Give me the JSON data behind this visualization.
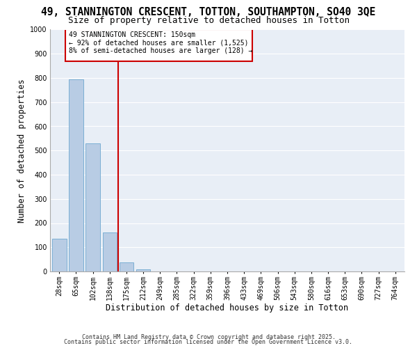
{
  "title1": "49, STANNINGTON CRESCENT, TOTTON, SOUTHAMPTON, SO40 3QE",
  "title2": "Size of property relative to detached houses in Totton",
  "xlabel": "Distribution of detached houses by size in Totton",
  "ylabel": "Number of detached properties",
  "bar_labels": [
    "28sqm",
    "65sqm",
    "102sqm",
    "138sqm",
    "175sqm",
    "212sqm",
    "249sqm",
    "285sqm",
    "322sqm",
    "359sqm",
    "396sqm",
    "433sqm",
    "469sqm",
    "506sqm",
    "543sqm",
    "580sqm",
    "616sqm",
    "653sqm",
    "690sqm",
    "727sqm",
    "764sqm"
  ],
  "bar_values": [
    135,
    795,
    530,
    162,
    38,
    8,
    0,
    0,
    0,
    0,
    0,
    0,
    0,
    0,
    0,
    0,
    0,
    0,
    0,
    0,
    0
  ],
  "bar_color": "#b8cce4",
  "bar_edge_color": "#7bafd4",
  "bg_color": "#e8eef6",
  "grid_color": "#ffffff",
  "vline_color": "#cc0000",
  "annotation_text": "49 STANNINGTON CRESCENT: 150sqm\n← 92% of detached houses are smaller (1,525)\n8% of semi-detached houses are larger (128) →",
  "annotation_box_color": "#cc0000",
  "ylim": [
    0,
    1000
  ],
  "yticks": [
    0,
    100,
    200,
    300,
    400,
    500,
    600,
    700,
    800,
    900,
    1000
  ],
  "footer1": "Contains HM Land Registry data © Crown copyright and database right 2025.",
  "footer2": "Contains public sector information licensed under the Open Government Licence v3.0.",
  "title1_fontsize": 10.5,
  "title2_fontsize": 9,
  "xlabel_fontsize": 8.5,
  "ylabel_fontsize": 8.5,
  "tick_fontsize": 7,
  "footer_fontsize": 6,
  "ann_fontsize": 7
}
